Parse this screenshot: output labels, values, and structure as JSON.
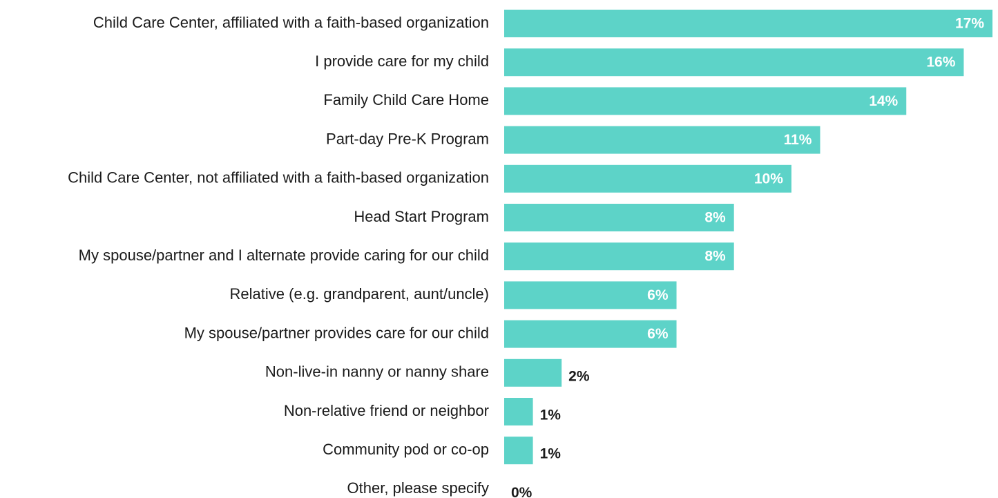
{
  "chart_data": {
    "type": "hbar",
    "categories": [
      "Child Care Center, affiliated with a faith-based organization",
      "I provide care for my child",
      "Family Child Care Home",
      "Part-day Pre-K Program",
      "Child Care Center, not affiliated with a faith-based organization",
      "Head Start Program",
      "My spouse/partner and I alternate provide caring for our child",
      "Relative (e.g. grandparent, aunt/uncle)",
      "My spouse/partner provides care for our child",
      "Non-live-in nanny or nanny share",
      "Non-relative friend or neighbor",
      "Community pod or co-op",
      "Other, please specify"
    ],
    "values": [
      17,
      16,
      14,
      11,
      10,
      8,
      8,
      6,
      6,
      2,
      1,
      1,
      0
    ],
    "value_labels": [
      "17%",
      "16%",
      "14%",
      "11%",
      "10%",
      "8%",
      "8%",
      "6%",
      "6%",
      "2%",
      "1%",
      "1%",
      "0%"
    ],
    "color": "#5dd3c8",
    "xlim": [
      0,
      17
    ]
  }
}
